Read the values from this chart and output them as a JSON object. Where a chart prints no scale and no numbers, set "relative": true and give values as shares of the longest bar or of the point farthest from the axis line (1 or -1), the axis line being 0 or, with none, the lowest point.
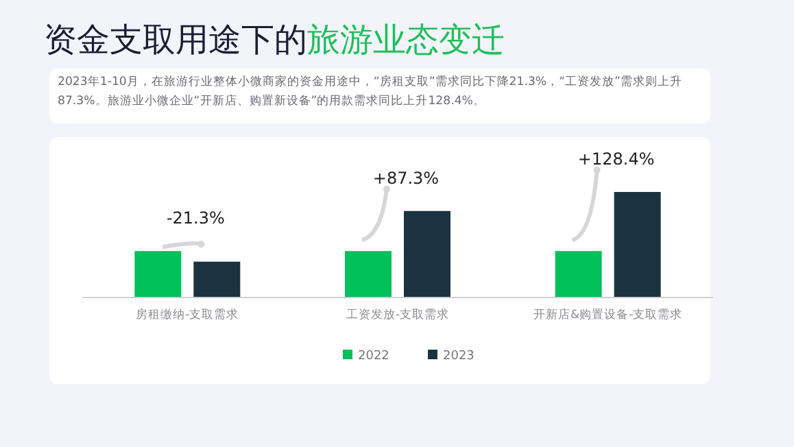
{
  "chart_data": {
    "type": "bar",
    "title": "资金支取用途下的**旅游业态变迁**",
    "subtitle": "2023年1-10月，在旅游行业整体小微商家的资金用途中，“房租支取”需求同比下降21.3%，“工资发放”需求则上升87.3%。旅游业小微企业“开新店、购置新设备”的用款需求同比上升128.4%。",
    "categories": [
      "房租缴纳-支取需求",
      "工资发放-支取需求",
      "开新店&购置设备-支取需求"
    ],
    "relative": true,
    "series": [
      {
        "name": "2022",
        "color": "#00c05a",
        "values": [
          0.44,
          0.44,
          0.44
        ]
      },
      {
        "name": "2023",
        "color": "#1b3340",
        "values": [
          0.34,
          0.82,
          1.0
        ]
      }
    ],
    "annotations": [
      "-21.3%",
      "+87.3%",
      "+128.4%"
    ],
    "legend": "bottom"
  }
}
